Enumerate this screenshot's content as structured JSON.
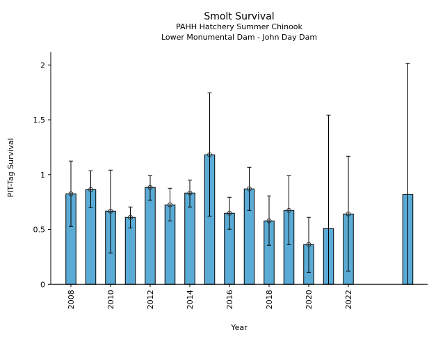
{
  "chart_data": {
    "type": "bar",
    "title": "Smolt Survival",
    "subtitle": [
      "PAHH Hatchery Summer Chinook",
      "Lower Monumental Dam - John Day Dam"
    ],
    "xlabel": "Year",
    "ylabel": "PIT-Tag Survival",
    "ylim": [
      0,
      2.12
    ],
    "xlim": [
      2007,
      2026
    ],
    "yticks": [
      0,
      0.5,
      1,
      1.5,
      2
    ],
    "ytick_labels": [
      "0",
      "0.5",
      "1",
      "1.5",
      "2"
    ],
    "xticks": [
      2008,
      2010,
      2012,
      2014,
      2016,
      2018,
      2020,
      2022
    ],
    "xtick_labels": [
      "2008",
      "2010",
      "2012",
      "2014",
      "2016",
      "2018",
      "2020",
      "2022"
    ],
    "grid": false,
    "bar_color": "#5aabd6",
    "bars": [
      {
        "year": 2008,
        "value": 0.825,
        "upper": 1.124,
        "lower": 0.527,
        "marker": true
      },
      {
        "year": 2009,
        "value": 0.863,
        "upper": 1.035,
        "lower": 0.698,
        "marker": true
      },
      {
        "year": 2010,
        "value": 0.667,
        "upper": 1.041,
        "lower": 0.286,
        "marker": true
      },
      {
        "year": 2011,
        "value": 0.61,
        "upper": 0.705,
        "lower": 0.514,
        "marker": true
      },
      {
        "year": 2012,
        "value": 0.883,
        "upper": 0.99,
        "lower": 0.768,
        "marker": true
      },
      {
        "year": 2013,
        "value": 0.724,
        "upper": 0.876,
        "lower": 0.578,
        "marker": true
      },
      {
        "year": 2014,
        "value": 0.832,
        "upper": 0.95,
        "lower": 0.705,
        "marker": true
      },
      {
        "year": 2015,
        "value": 1.181,
        "upper": 1.746,
        "lower": 0.622,
        "marker": true
      },
      {
        "year": 2016,
        "value": 0.648,
        "upper": 0.794,
        "lower": 0.502,
        "marker": true
      },
      {
        "year": 2017,
        "value": 0.87,
        "upper": 1.067,
        "lower": 0.673,
        "marker": true
      },
      {
        "year": 2018,
        "value": 0.578,
        "upper": 0.806,
        "lower": 0.356,
        "marker": true
      },
      {
        "year": 2019,
        "value": 0.673,
        "upper": 0.99,
        "lower": 0.362,
        "marker": true
      },
      {
        "year": 2020,
        "value": 0.362,
        "upper": 0.61,
        "lower": 0.108,
        "marker": true
      },
      {
        "year": 2021,
        "value": 0.508,
        "upper": 1.543,
        "lower": 0,
        "marker": false
      },
      {
        "year": 2022,
        "value": 0.641,
        "upper": 1.168,
        "lower": 0.121,
        "marker": true
      },
      {
        "year": 2025,
        "value": 0.819,
        "upper": 2.013,
        "lower": 0,
        "marker": false
      }
    ]
  }
}
